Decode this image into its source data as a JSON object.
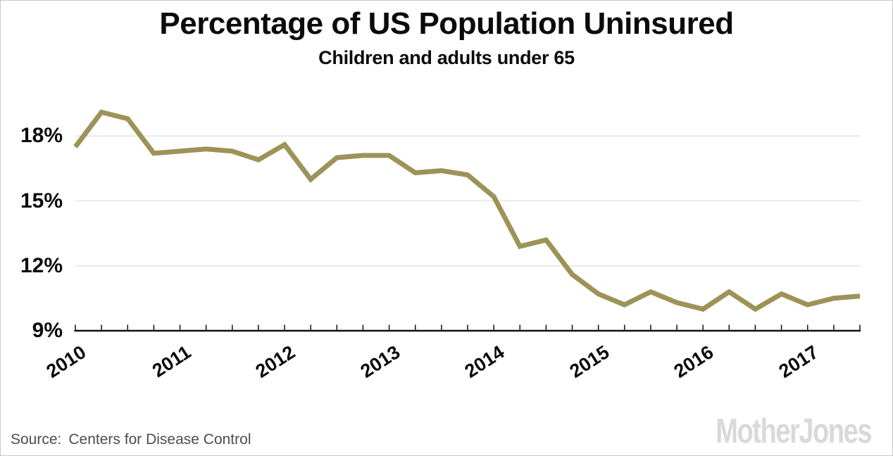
{
  "header": {
    "title": "Percentage of US Population Uninsured",
    "subtitle": "Children and adults under 65"
  },
  "chart_data": {
    "type": "line",
    "title": "Percentage of US Population Uninsured",
    "subtitle": "Children and adults under 65",
    "x": [
      "2010 Q1",
      "2010 Q2",
      "2010 Q3",
      "2010 Q4",
      "2011 Q1",
      "2011 Q2",
      "2011 Q3",
      "2011 Q4",
      "2012 Q1",
      "2012 Q2",
      "2012 Q3",
      "2012 Q4",
      "2013 Q1",
      "2013 Q2",
      "2013 Q3",
      "2013 Q4",
      "2014 Q1",
      "2014 Q2",
      "2014 Q3",
      "2014 Q4",
      "2015 Q1",
      "2015 Q2",
      "2015 Q3",
      "2015 Q4",
      "2016 Q1",
      "2016 Q2",
      "2016 Q3",
      "2016 Q4",
      "2017 Q1",
      "2017 Q2",
      "2017 Q3"
    ],
    "values": [
      17.5,
      19.1,
      18.8,
      17.2,
      17.3,
      17.4,
      17.3,
      16.9,
      17.6,
      16.0,
      17.0,
      17.1,
      17.1,
      16.3,
      16.4,
      16.2,
      15.2,
      12.9,
      13.2,
      11.6,
      10.7,
      10.2,
      10.8,
      10.3,
      10.0,
      10.8,
      10.0,
      10.7,
      10.2,
      10.5,
      10.6
    ],
    "x_tick_years": [
      "2010",
      "2011",
      "2012",
      "2013",
      "2014",
      "2015",
      "2016",
      "2017"
    ],
    "x_year_tick_indices": [
      0,
      4,
      8,
      12,
      16,
      20,
      24,
      28
    ],
    "y_ticks": [
      9,
      12,
      15,
      18
    ],
    "y_tick_labels": [
      "9%",
      "12%",
      "15%",
      "18%"
    ],
    "ylim": [
      9,
      19.7
    ],
    "grid": "horizontal",
    "legend": "none",
    "ylabel": "",
    "xlabel": ""
  },
  "footer": {
    "source_label": "Source:",
    "source_text": "Centers for Disease Control",
    "logo_text": "MotherJones"
  },
  "colors": {
    "line": "#9d9358",
    "grid": "#e3e3e3",
    "axis": "#111111",
    "text": "#0b0b0b",
    "source_text": "#4d4d4d",
    "logo": "#d9d9d9",
    "background": "#ffffff"
  }
}
